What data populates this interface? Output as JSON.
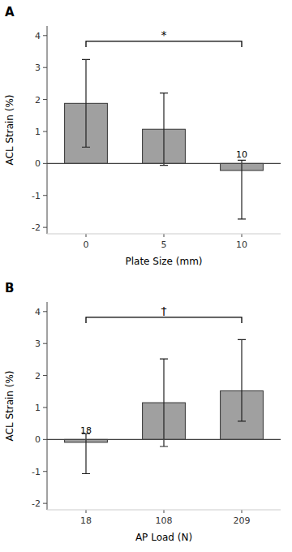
{
  "chart_data": [
    {
      "type": "bar",
      "title": "A",
      "categories": [
        "0",
        "5",
        "10"
      ],
      "values": [
        1.88,
        1.07,
        -0.22
      ],
      "error_upper": [
        1.37,
        1.13,
        0.32
      ],
      "error_lower": [
        1.37,
        1.13,
        1.52
      ],
      "x_label": "Plate Size (mm)",
      "y_label": "ACL Strain (%)",
      "ylim": [
        -2.2,
        4.3
      ],
      "yticks": [
        -2,
        -1,
        0,
        1,
        2,
        3,
        4
      ],
      "color": "#a0a0a0",
      "annotations": [
        {
          "text": "10",
          "x": "10",
          "y": 0.12
        }
      ],
      "brackets": [
        {
          "text": "*",
          "x1": "0",
          "x2": "10",
          "y": 3.82
        }
      ]
    },
    {
      "type": "bar",
      "title": "B",
      "categories": [
        "18",
        "108",
        "209"
      ],
      "values": [
        -0.09,
        1.15,
        1.52
      ],
      "error_upper": [
        0.27,
        1.37,
        1.6
      ],
      "error_lower": [
        0.98,
        1.37,
        0.95
      ],
      "x_label": "AP Load (N)",
      "y_label": "ACL Strain (%)",
      "ylim": [
        -2.2,
        4.3
      ],
      "yticks": [
        -2,
        -1,
        0,
        1,
        2,
        3,
        4
      ],
      "color": "#a0a0a0",
      "annotations": [
        {
          "text": "18",
          "x": "18",
          "y": 0.12
        }
      ],
      "brackets": [
        {
          "text": "†",
          "x1": "18",
          "x2": "209",
          "y": 3.82
        }
      ]
    }
  ]
}
